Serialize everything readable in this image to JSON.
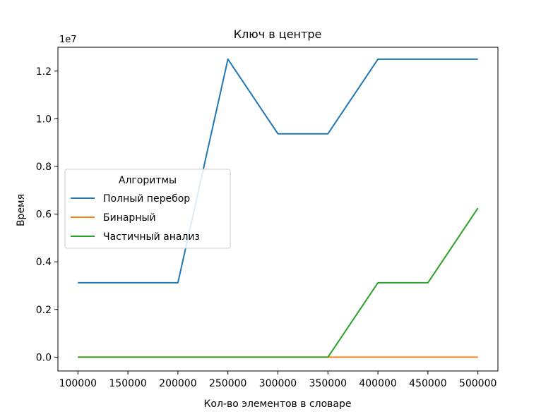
{
  "chart_data": {
    "type": "line",
    "title": "Ключ в центре",
    "xlabel": "Кол-во элементов в словаре",
    "ylabel": "Время",
    "y_offset_label": "1e7",
    "y_scale": 10000000,
    "xlim": [
      80000,
      520000
    ],
    "ylim": [
      -580000,
      13000000
    ],
    "xticks": [
      100000,
      150000,
      200000,
      250000,
      300000,
      350000,
      400000,
      450000,
      500000
    ],
    "xtick_labels": [
      "100000",
      "150000",
      "200000",
      "250000",
      "300000",
      "350000",
      "400000",
      "450000",
      "500000"
    ],
    "yticks": [
      0,
      2000000,
      4000000,
      6000000,
      8000000,
      10000000,
      12000000
    ],
    "ytick_labels": [
      "0.0",
      "0.2",
      "0.4",
      "0.6",
      "0.8",
      "1.0",
      "1.2"
    ],
    "grid": false,
    "legend": {
      "title": "Алгоритмы",
      "placement": "center-left"
    },
    "x": [
      100000,
      150000,
      200000,
      250000,
      300000,
      350000,
      400000,
      450000,
      500000
    ],
    "series": [
      {
        "name": "Полный перебор",
        "color": "#1f77b4",
        "values": [
          3120000,
          3120000,
          3120000,
          12500000,
          9370000,
          9370000,
          12500000,
          12500000,
          12500000
        ]
      },
      {
        "name": "Бинарный",
        "color": "#ff7f0e",
        "values": [
          0,
          0,
          0,
          0,
          0,
          0,
          0,
          0,
          0
        ]
      },
      {
        "name": "Частичный анализ",
        "color": "#2ca02c",
        "values": [
          0,
          0,
          0,
          0,
          0,
          0,
          3120000,
          3120000,
          6250000
        ]
      }
    ]
  }
}
